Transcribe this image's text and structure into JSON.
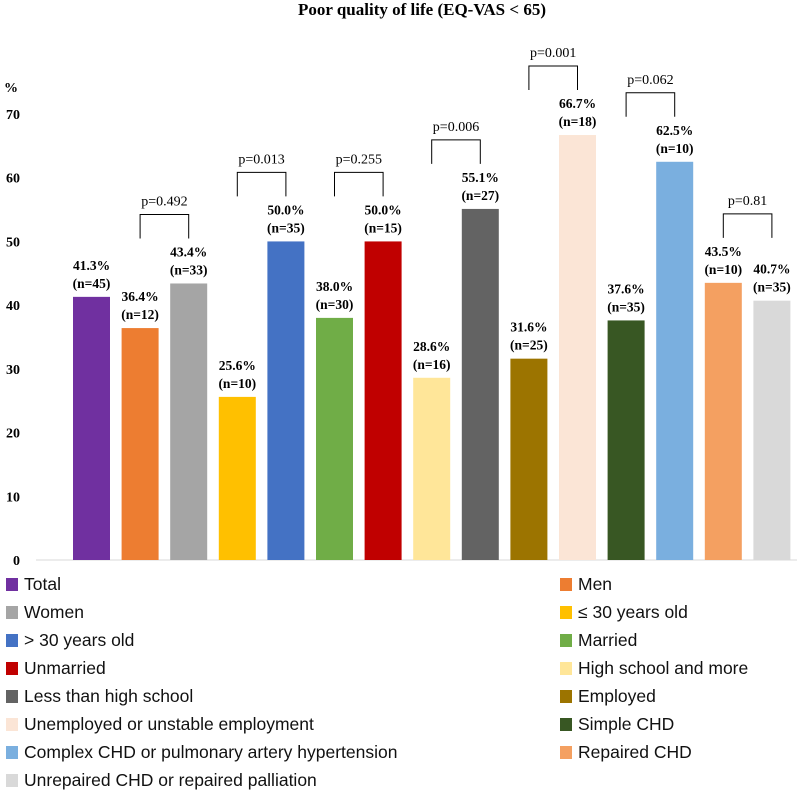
{
  "chart_data": {
    "type": "bar",
    "title": "Poor quality of life (EQ-VAS < 65)",
    "ylabel": "%",
    "xlabel": "",
    "ylim": [
      0,
      70
    ],
    "yticks": [
      0,
      10,
      20,
      30,
      40,
      50,
      60,
      70
    ],
    "grid": false,
    "legend_position": "bottom",
    "categories": [
      "Total",
      "Men",
      "Women",
      "≤ 30 years old",
      "> 30 years old",
      "Married",
      "Unmarried",
      "High school and more",
      "Less than high school",
      "Employed",
      "Unemployed or unstable employment",
      "Simple CHD",
      "Complex CHD or pulmonary artery hypertension",
      "Repaired CHD",
      "Unrepaired CHD or repaired palliation"
    ],
    "values": [
      41.3,
      36.4,
      43.4,
      25.6,
      50.0,
      38.0,
      50.0,
      28.6,
      55.1,
      31.6,
      66.7,
      37.6,
      62.5,
      43.5,
      40.7
    ],
    "pct_labels": [
      "41.3%",
      "36.4%",
      "43.4%",
      "25.6%",
      "50.0%",
      "38.0%",
      "50.0%",
      "28.6%",
      "55.1%",
      "31.6%",
      "66.7%",
      "37.6%",
      "62.5%",
      "43.5%",
      "40.7%"
    ],
    "n_labels": [
      "(n=45)",
      "(n=12)",
      "(n=33)",
      "(n=10)",
      "(n=35)",
      "(n=30)",
      "(n=15)",
      "(n=16)",
      "(n=27)",
      "(n=25)",
      "(n=18)",
      "(n=35)",
      "(n=10)",
      "(n=10)",
      "(n=35)"
    ],
    "colors": [
      "#7030A0",
      "#ED7D31",
      "#A5A5A5",
      "#FFC000",
      "#4472C4",
      "#70AD47",
      "#C00000",
      "#FFE699",
      "#636363",
      "#9C7400",
      "#FBE5D6",
      "#385723",
      "#7AAFDF",
      "#F4A061",
      "#D9D9D9"
    ],
    "comparisons": [
      {
        "between": [
          1,
          2
        ],
        "label": "p=0.492"
      },
      {
        "between": [
          3,
          4
        ],
        "label": "p=0.013"
      },
      {
        "between": [
          5,
          6
        ],
        "label": "p=0.255"
      },
      {
        "between": [
          7,
          8
        ],
        "label": "p=0.006"
      },
      {
        "between": [
          9,
          10
        ],
        "label": "p=0.001"
      },
      {
        "between": [
          11,
          12
        ],
        "label": "p=0.062"
      },
      {
        "between": [
          13,
          14
        ],
        "label": "p=0.81"
      }
    ]
  }
}
